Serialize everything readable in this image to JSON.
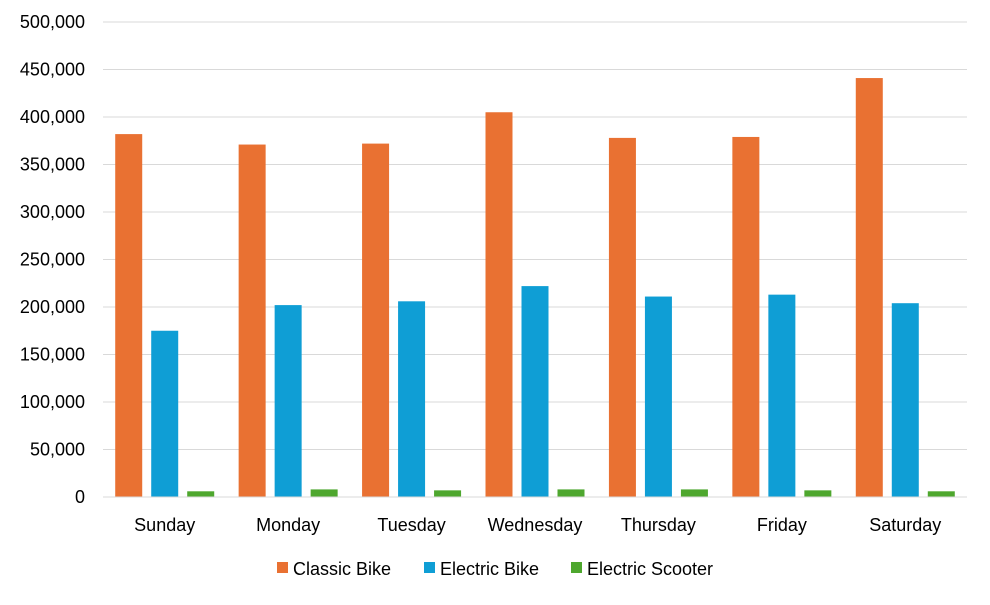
{
  "chart_data": {
    "type": "bar",
    "title": "",
    "xlabel": "",
    "ylabel": "",
    "ylim": [
      0,
      500000
    ],
    "y_ticks": [
      "0",
      "50,000",
      "100,000",
      "150,000",
      "200,000",
      "250,000",
      "300,000",
      "350,000",
      "400,000",
      "450,000",
      "500,000"
    ],
    "grid": true,
    "legend_position": "bottom",
    "categories": [
      "Sunday",
      "Monday",
      "Tuesday",
      "Wednesday",
      "Thursday",
      "Friday",
      "Saturday"
    ],
    "series": [
      {
        "name": "Classic Bike",
        "color": "#E97132",
        "values": [
          382000,
          371000,
          372000,
          405000,
          378000,
          379000,
          441000
        ]
      },
      {
        "name": "Electric Bike",
        "color": "#0F9ED5",
        "values": [
          175000,
          202000,
          206000,
          222000,
          211000,
          213000,
          204000
        ]
      },
      {
        "name": "Electric Scooter",
        "color": "#4EA72E",
        "values": [
          6000,
          8000,
          7000,
          8000,
          8000,
          7000,
          6000
        ]
      }
    ]
  }
}
